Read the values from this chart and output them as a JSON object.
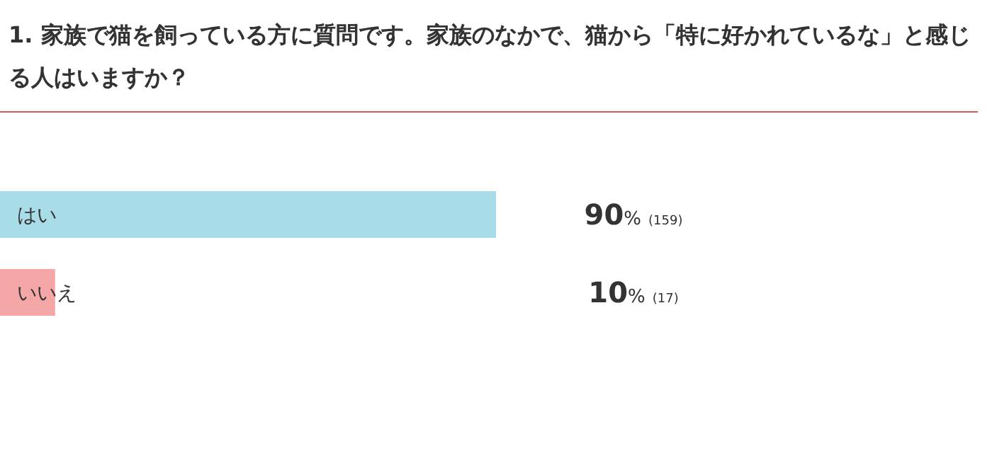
{
  "chart_data": {
    "type": "bar",
    "orientation": "horizontal",
    "title": "1. 家族で猫を飼っている方に質問です。家族のなかで、猫から「特に好かれているな」と感じる人はいますか？",
    "categories": [
      "はい",
      "いいえ"
    ],
    "values": [
      90,
      10
    ],
    "colors": [
      "#a8dce8",
      "#f5a7a7"
    ],
    "value_labels": [
      "90% (159)",
      "10% (17)"
    ]
  }
}
